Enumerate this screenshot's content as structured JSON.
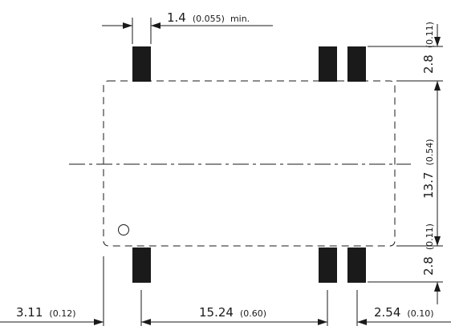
{
  "dimensions": {
    "pad_width": {
      "value": "1.4",
      "inch": "(0.055)",
      "suffix": "min."
    },
    "pad_length_top": {
      "value": "2.8",
      "inch": "(0.11)"
    },
    "pad_gap": {
      "value": "13.7",
      "inch": "(0.54)"
    },
    "pad_length_bottom": {
      "value": "2.8",
      "inch": "(0.11)"
    },
    "left_offset": {
      "value": "3.11",
      "inch": "(0.12)"
    },
    "pad_pitch_wide": {
      "value": "15.24",
      "inch": "(0.60)"
    },
    "pad_pitch_narrow": {
      "value": "2.54",
      "inch": "(0.10)"
    }
  }
}
